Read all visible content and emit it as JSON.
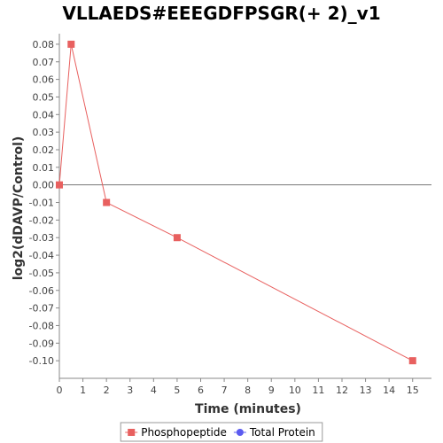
{
  "chart_data": {
    "type": "line",
    "title": "VLLAEDS#EEEGDFPSGR(+ 2)_v1",
    "xlabel": "Time (minutes)",
    "ylabel": "log2(dDAVP/Control)",
    "xlim": [
      0,
      15.8
    ],
    "ylim": [
      -0.11,
      0.086
    ],
    "x_ticks": [
      0,
      1,
      2,
      3,
      4,
      5,
      6,
      7,
      8,
      9,
      10,
      11,
      12,
      13,
      14,
      15
    ],
    "y_ticks": [
      0.08,
      0.07,
      0.06,
      0.05,
      0.04,
      0.03,
      0.02,
      0.01,
      0.0,
      -0.01,
      -0.02,
      -0.03,
      -0.04,
      -0.05,
      -0.06,
      -0.07,
      -0.08,
      -0.09,
      -0.1
    ],
    "y_tick_labels": [
      "0.08",
      "0.07",
      "0.06",
      "0.05",
      "0.04",
      "0.03",
      "0.02",
      "0.01",
      "0.00",
      "-0.01",
      "-0.02",
      "-0.03",
      "-0.04",
      "-0.05",
      "-0.06",
      "-0.07",
      "-0.08",
      "-0.09",
      "-0.10"
    ],
    "grid": false,
    "zero_line": true,
    "legend_position": "bottom",
    "series": [
      {
        "name": "Phosphopeptide",
        "color": "#e8605f",
        "marker": "square",
        "x": [
          0,
          0.5,
          2,
          5,
          15
        ],
        "y": [
          0.0,
          0.08,
          -0.01,
          -0.03,
          -0.1
        ]
      },
      {
        "name": "Total Protein",
        "color": "#5b5bf0",
        "marker": "circle",
        "x": [],
        "y": []
      }
    ]
  }
}
